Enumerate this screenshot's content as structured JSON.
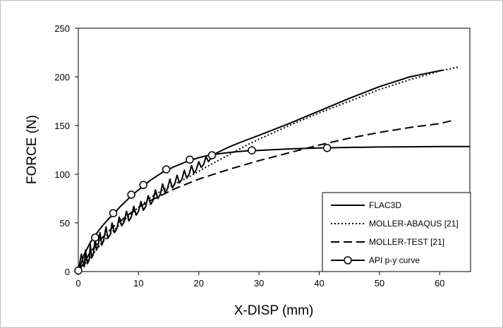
{
  "chart_data": {
    "type": "line",
    "title": "",
    "xlabel": "X-DISP  (mm)",
    "ylabel": "FORCE (N)",
    "xlim": [
      0,
      65
    ],
    "ylim": [
      0,
      250
    ],
    "xticks": [
      0,
      10,
      20,
      30,
      40,
      50,
      60
    ],
    "yticks": [
      0,
      50,
      100,
      150,
      200,
      250
    ],
    "grid": false,
    "legend_position": "bottom-right",
    "series": [
      {
        "name": "FLAC3D",
        "style": "solid",
        "color": "#000000",
        "x": [
          0,
          0.5,
          0.8,
          1.0,
          1.2,
          1.5,
          1.8,
          2.0,
          2.2,
          2.5,
          2.8,
          3.0,
          3.3,
          3.6,
          3.9,
          4.2,
          4.6,
          4.9,
          5.3,
          5.6,
          6.0,
          6.4,
          6.8,
          7.2,
          7.6,
          8.0,
          8.4,
          8.8,
          9.2,
          9.6,
          10.0,
          10.4,
          10.8,
          11.2,
          11.6,
          12.0,
          12.4,
          12.8,
          13.2,
          13.6,
          14.0,
          14.4,
          14.8,
          15.2,
          15.6,
          16.0,
          16.4,
          16.8,
          17.2,
          17.6,
          18.0,
          18.4,
          18.8,
          19.2,
          19.6,
          20.0,
          20.4,
          20.8,
          21.2,
          21.6,
          22.0,
          23,
          25,
          27,
          30,
          35,
          40,
          45,
          50,
          55,
          60.5
        ],
        "y": [
          0,
          18,
          10,
          5,
          22,
          8,
          12,
          28,
          14,
          18,
          34,
          22,
          26,
          40,
          27,
          32,
          46,
          34,
          38,
          50,
          40,
          44,
          56,
          47,
          51,
          62,
          52,
          56,
          67,
          58,
          62,
          72,
          63,
          67,
          78,
          69,
          73,
          84,
          75,
          79,
          90,
          81,
          85,
          95,
          86,
          90,
          99,
          91,
          95,
          104,
          96,
          100,
          109,
          101,
          105,
          113,
          107,
          110,
          118,
          113,
          116,
          122,
          128,
          133,
          140,
          152,
          165,
          178,
          190,
          200,
          207
        ]
      },
      {
        "name": "MOLLER-ABAQUS [21]",
        "style": "dotted",
        "color": "#000000",
        "x": [
          0,
          2,
          4,
          6,
          8,
          10,
          12,
          14,
          16,
          18,
          20,
          22,
          25,
          28,
          30,
          35,
          40,
          45,
          50,
          55,
          60,
          63
        ],
        "y": [
          0,
          15,
          30,
          43,
          55,
          66,
          76,
          84,
          90,
          96,
          103,
          110,
          120,
          130,
          136,
          150,
          163,
          175,
          187,
          197,
          206,
          210
        ]
      },
      {
        "name": "MOLLER-TEST [21]",
        "style": "dashed",
        "color": "#000000",
        "x": [
          0,
          2,
          4,
          6,
          8,
          10,
          12,
          14,
          16,
          18,
          20,
          25,
          30,
          35,
          40,
          45,
          50,
          55,
          60,
          62
        ],
        "y": [
          0,
          20,
          35,
          47,
          57,
          66,
          73,
          79,
          85,
          90,
          95,
          105,
          114,
          122,
          130,
          137,
          143,
          148,
          152,
          155
        ]
      },
      {
        "name": "API p-y curve",
        "style": "solid-with-circle-markers",
        "color": "#000000",
        "x": [
          0,
          1,
          2,
          3,
          4,
          5,
          6,
          7,
          8,
          9,
          10,
          11,
          12,
          14,
          16,
          18,
          20,
          22,
          24,
          26,
          28,
          30,
          35,
          40,
          45,
          50,
          55,
          60,
          65
        ],
        "y": [
          0,
          18,
          30,
          39,
          47,
          54,
          60,
          67,
          73,
          79,
          84,
          89,
          94,
          102,
          108,
          113,
          117,
          120,
          121.5,
          123,
          124,
          124.5,
          126,
          127,
          127.5,
          128,
          128.2,
          128.4,
          128.5
        ],
        "markers_x": [
          0,
          2.8,
          5.8,
          8.8,
          10.8,
          14.6,
          18.5,
          22.2,
          28.8,
          41.3
        ],
        "markers_y": [
          1,
          35,
          60,
          79,
          89,
          105,
          115,
          119.5,
          124.5,
          127
        ]
      }
    ]
  }
}
